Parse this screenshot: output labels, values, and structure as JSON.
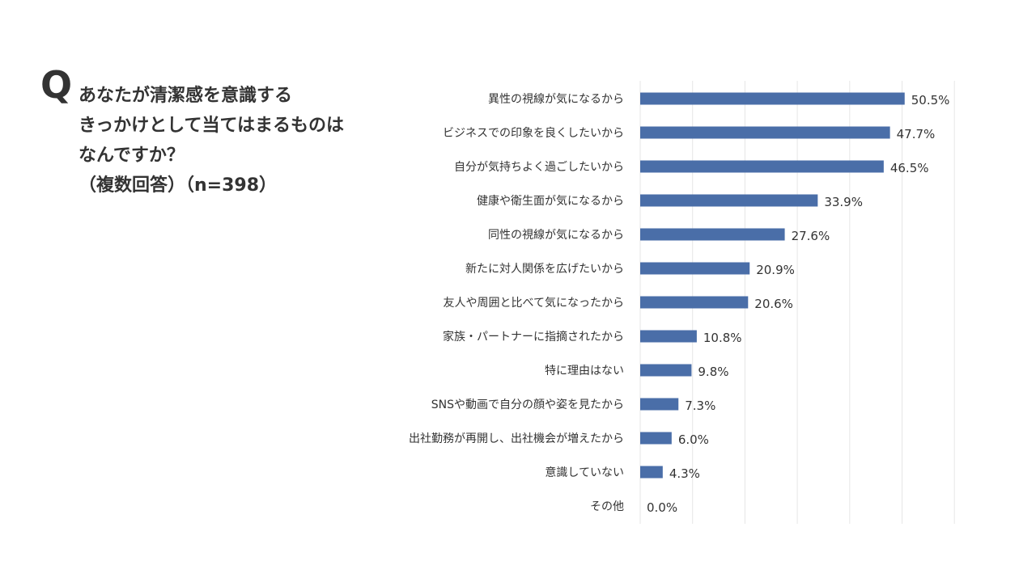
{
  "question": {
    "mark": "Q",
    "lines": [
      "あなたが清潔感を意識する",
      "きっかけとして当てはまるものは",
      "なんですか？",
      "（複数回答）（n=398）"
    ]
  },
  "chart_data": {
    "type": "bar",
    "orientation": "horizontal",
    "categories": [
      "異性の視線が気になるから",
      "ビジネスでの印象を良くしたいから",
      "自分が気持ちよく過ごしたいから",
      "健康や衛生面が気になるから",
      "同性の視線が気になるから",
      "新たに対人関係を広げたいから",
      "友人や周囲と比べて気になったから",
      "家族・パートナーに指摘されたから",
      "特に理由はない",
      "SNSや動画で自分の顔や姿を見たから",
      "出社勤務が再開し、出社機会が増えたから",
      "意識していない",
      "その他"
    ],
    "values": [
      50.5,
      47.7,
      46.5,
      33.9,
      27.6,
      20.9,
      20.6,
      10.8,
      9.8,
      7.3,
      6.0,
      4.3,
      0.0
    ],
    "value_labels": [
      "50.5%",
      "47.7%",
      "46.5%",
      "33.9%",
      "27.6%",
      "20.9%",
      "20.6%",
      "10.8%",
      "9.8%",
      "7.3%",
      "6.0%",
      "4.3%",
      "0.0%"
    ],
    "xlim": [
      0,
      60
    ],
    "grid": true,
    "bar_color": "#4a6ea8",
    "grid_color": "#e6e6e6"
  }
}
